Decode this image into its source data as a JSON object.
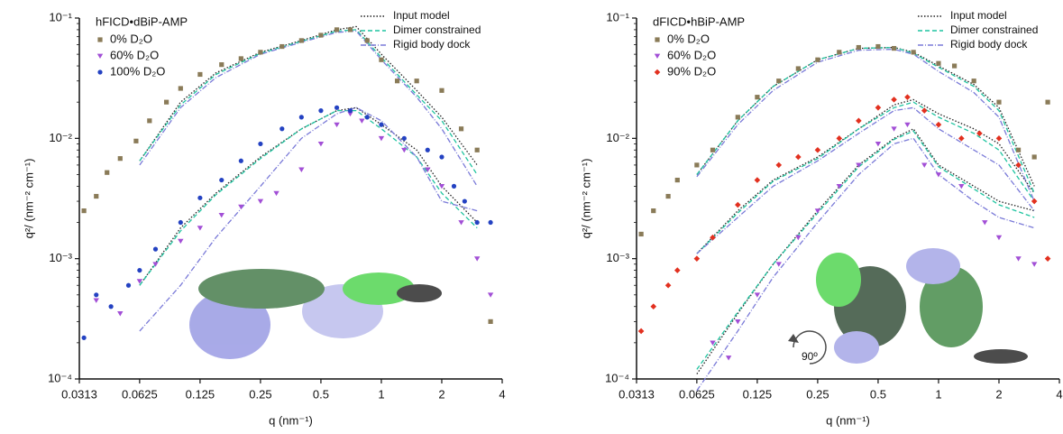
{
  "chart_data": [
    {
      "type": "scatter",
      "title": "hFICD•dBiP-AMP",
      "xlabel": "q (nm⁻¹)",
      "ylabel": "q²/ (nm⁻² cm⁻¹)",
      "xscale": "log",
      "yscale": "log",
      "xlim": [
        0.0313,
        4
      ],
      "ylim": [
        0.0001,
        0.1
      ],
      "xticks": [
        0.0313,
        0.0625,
        0.125,
        0.25,
        0.5,
        1,
        2,
        4
      ],
      "yticks": [
        {
          "value": 0.0001,
          "label": "10⁻⁴"
        },
        {
          "value": 0.001,
          "label": "10⁻³"
        },
        {
          "value": 0.01,
          "label": "10⁻²"
        },
        {
          "value": 0.1,
          "label": "10⁻¹"
        }
      ],
      "series": [
        {
          "name": "0% D₂O",
          "color": "#8a7b58",
          "marker": "square",
          "x": [
            0.033,
            0.038,
            0.043,
            0.05,
            0.06,
            0.07,
            0.085,
            0.1,
            0.125,
            0.16,
            0.2,
            0.25,
            0.32,
            0.4,
            0.5,
            0.6,
            0.7,
            0.85,
            1,
            1.2,
            1.5,
            2,
            2.5,
            3,
            3.5
          ],
          "values": [
            0.0025,
            0.0033,
            0.0052,
            0.0068,
            0.0095,
            0.014,
            0.02,
            0.026,
            0.034,
            0.041,
            0.046,
            0.052,
            0.058,
            0.065,
            0.072,
            0.08,
            0.08,
            0.065,
            0.045,
            0.03,
            0.03,
            0.025,
            0.012,
            0.008,
            0.0003
          ]
        },
        {
          "name": "60% D₂O",
          "color": "#a24fd6",
          "marker": "triangle-down",
          "x": [
            0.038,
            0.05,
            0.0625,
            0.075,
            0.1,
            0.125,
            0.16,
            0.2,
            0.25,
            0.3,
            0.4,
            0.5,
            0.6,
            0.7,
            0.8,
            1,
            1.3,
            1.7,
            2,
            2.5,
            3,
            3.5
          ],
          "values": [
            0.00045,
            0.00035,
            0.00065,
            0.0009,
            0.0014,
            0.0018,
            0.0023,
            0.0027,
            0.003,
            0.0035,
            0.0055,
            0.009,
            0.013,
            0.016,
            0.014,
            0.01,
            0.008,
            0.0055,
            0.004,
            0.002,
            0.001,
            0.0005
          ]
        },
        {
          "name": "100% D₂O",
          "color": "#2442c2",
          "marker": "circle",
          "x": [
            0.033,
            0.038,
            0.045,
            0.055,
            0.0625,
            0.075,
            0.1,
            0.125,
            0.16,
            0.2,
            0.25,
            0.32,
            0.4,
            0.5,
            0.6,
            0.7,
            0.85,
            1,
            1.3,
            1.7,
            2,
            2.3,
            2.6,
            3,
            3.5
          ],
          "values": [
            0.00022,
            0.0005,
            0.0004,
            0.0006,
            0.0008,
            0.0012,
            0.002,
            0.0032,
            0.0045,
            0.0065,
            0.009,
            0.012,
            0.015,
            0.017,
            0.018,
            0.017,
            0.015,
            0.013,
            0.01,
            0.008,
            0.007,
            0.004,
            0.003,
            0.002,
            0.002
          ]
        }
      ],
      "models": [
        {
          "name": "Input model",
          "color": "#222222",
          "dash": "1.5,2",
          "x": [
            0.0625,
            0.1,
            0.15,
            0.25,
            0.4,
            0.6,
            0.75,
            1,
            1.5,
            2,
            3
          ],
          "curves": [
            [
              0.0065,
              0.02,
              0.035,
              0.052,
              0.065,
              0.08,
              0.085,
              0.05,
              0.025,
              0.015,
              0.006
            ],
            [
              0.0006,
              0.0018,
              0.0035,
              0.007,
              0.012,
              0.017,
              0.018,
              0.013,
              0.008,
              0.004,
              0.002
            ]
          ]
        },
        {
          "name": "Dimer constrained",
          "color": "#1fc4a0",
          "dash": "5,3",
          "x": [
            0.0625,
            0.1,
            0.15,
            0.25,
            0.4,
            0.6,
            0.75,
            1,
            1.5,
            2,
            3
          ],
          "curves": [
            [
              0.0065,
              0.019,
              0.034,
              0.051,
              0.064,
              0.078,
              0.08,
              0.047,
              0.023,
              0.014,
              0.005
            ],
            [
              0.0006,
              0.0017,
              0.0034,
              0.0068,
              0.012,
              0.017,
              0.017,
              0.012,
              0.007,
              0.0035,
              0.0018
            ]
          ]
        },
        {
          "name": "Rigid body dock",
          "color": "#7a7ad8",
          "dash": "6,2,1,2",
          "x": [
            0.0625,
            0.1,
            0.15,
            0.25,
            0.4,
            0.6,
            0.75,
            1,
            1.5,
            2,
            3
          ],
          "curves": [
            [
              0.006,
              0.018,
              0.032,
              0.05,
              0.063,
              0.076,
              0.078,
              0.045,
              0.022,
              0.012,
              0.004
            ],
            [
              0.00025,
              0.0006,
              0.0015,
              0.004,
              0.01,
              0.016,
              0.018,
              0.014,
              0.007,
              0.003,
              0.0025
            ]
          ]
        }
      ]
    },
    {
      "type": "scatter",
      "title": "dFICD•hBiP-AMP",
      "xlabel": "q (nm⁻¹)",
      "ylabel": "q²/ (nm⁻² cm⁻¹)",
      "xscale": "log",
      "yscale": "log",
      "xlim": [
        0.0313,
        4
      ],
      "ylim": [
        0.0001,
        0.1
      ],
      "xticks": [
        0.0313,
        0.0625,
        0.125,
        0.25,
        0.5,
        1,
        2,
        4
      ],
      "yticks": [
        {
          "value": 0.0001,
          "label": "10⁻⁴"
        },
        {
          "value": 0.001,
          "label": "10⁻³"
        },
        {
          "value": 0.01,
          "label": "10⁻²"
        },
        {
          "value": 0.1,
          "label": "10⁻¹"
        }
      ],
      "annotations": [
        "90º"
      ],
      "series": [
        {
          "name": "0% D₂O",
          "color": "#8a7b58",
          "marker": "square",
          "x": [
            0.033,
            0.038,
            0.045,
            0.05,
            0.0625,
            0.075,
            0.1,
            0.125,
            0.16,
            0.2,
            0.25,
            0.32,
            0.4,
            0.5,
            0.6,
            0.75,
            1,
            1.2,
            1.5,
            2,
            2.5,
            3,
            3.5
          ],
          "values": [
            0.0016,
            0.0025,
            0.0033,
            0.0045,
            0.006,
            0.008,
            0.015,
            0.022,
            0.03,
            0.038,
            0.045,
            0.052,
            0.057,
            0.058,
            0.056,
            0.052,
            0.042,
            0.04,
            0.03,
            0.02,
            0.008,
            0.007,
            0.02
          ]
        },
        {
          "name": "60% D₂O",
          "color": "#a24fd6",
          "marker": "triangle-down",
          "x": [
            0.075,
            0.09,
            0.1,
            0.125,
            0.16,
            0.2,
            0.25,
            0.32,
            0.4,
            0.5,
            0.6,
            0.7,
            0.85,
            1,
            1.3,
            1.7,
            2,
            2.5,
            3
          ],
          "values": [
            0.0002,
            0.00015,
            0.0003,
            0.0005,
            0.0009,
            0.0015,
            0.0025,
            0.004,
            0.006,
            0.009,
            0.012,
            0.013,
            0.006,
            0.005,
            0.004,
            0.002,
            0.0015,
            0.001,
            0.0009
          ]
        },
        {
          "name": "90% D₂O",
          "color": "#e2301f",
          "marker": "diamond",
          "x": [
            0.033,
            0.038,
            0.045,
            0.05,
            0.0625,
            0.075,
            0.1,
            0.125,
            0.16,
            0.2,
            0.25,
            0.32,
            0.4,
            0.5,
            0.6,
            0.7,
            0.85,
            1,
            1.3,
            1.6,
            2,
            2.5,
            3,
            3.5
          ],
          "values": [
            0.00025,
            0.0004,
            0.0006,
            0.0008,
            0.001,
            0.0015,
            0.0028,
            0.0045,
            0.006,
            0.007,
            0.008,
            0.01,
            0.014,
            0.018,
            0.021,
            0.022,
            0.017,
            0.013,
            0.01,
            0.011,
            0.01,
            0.006,
            0.003,
            0.001
          ]
        }
      ],
      "models": [
        {
          "name": "Input model",
          "color": "#222222",
          "dash": "1.5,2",
          "x": [
            0.0625,
            0.1,
            0.15,
            0.25,
            0.4,
            0.6,
            0.75,
            1,
            1.5,
            2,
            3
          ],
          "curves": [
            [
              0.005,
              0.014,
              0.027,
              0.045,
              0.056,
              0.057,
              0.052,
              0.04,
              0.028,
              0.018,
              0.004
            ],
            [
              0.0011,
              0.0025,
              0.0045,
              0.007,
              0.012,
              0.019,
              0.021,
              0.016,
              0.012,
              0.009,
              0.0035
            ],
            [
              0.00011,
              0.00035,
              0.0009,
              0.0025,
              0.006,
              0.01,
              0.012,
              0.006,
              0.004,
              0.003,
              0.0025
            ]
          ]
        },
        {
          "name": "Dimer constrained",
          "color": "#1fc4a0",
          "dash": "5,3",
          "x": [
            0.0625,
            0.1,
            0.15,
            0.25,
            0.4,
            0.6,
            0.75,
            1,
            1.5,
            2,
            3
          ],
          "curves": [
            [
              0.005,
              0.014,
              0.027,
              0.045,
              0.056,
              0.057,
              0.051,
              0.039,
              0.027,
              0.017,
              0.0035
            ],
            [
              0.0011,
              0.0024,
              0.0044,
              0.0068,
              0.012,
              0.018,
              0.02,
              0.015,
              0.011,
              0.008,
              0.003
            ],
            [
              0.00012,
              0.00036,
              0.0009,
              0.0024,
              0.0058,
              0.0098,
              0.0115,
              0.0058,
              0.0038,
              0.0028,
              0.0022
            ]
          ]
        },
        {
          "name": "Rigid body dock",
          "color": "#7a7ad8",
          "dash": "6,2,1,2",
          "x": [
            0.0625,
            0.1,
            0.15,
            0.25,
            0.4,
            0.6,
            0.75,
            1,
            1.5,
            2,
            3
          ],
          "curves": [
            [
              0.0048,
              0.013,
              0.025,
              0.043,
              0.054,
              0.055,
              0.05,
              0.036,
              0.024,
              0.015,
              0.003
            ],
            [
              0.0011,
              0.0022,
              0.004,
              0.0065,
              0.011,
              0.017,
              0.018,
              0.012,
              0.008,
              0.006,
              0.0025
            ],
            [
              8e-05,
              0.00025,
              0.0007,
              0.002,
              0.005,
              0.009,
              0.01,
              0.005,
              0.003,
              0.0022,
              0.0018
            ]
          ]
        }
      ]
    }
  ]
}
